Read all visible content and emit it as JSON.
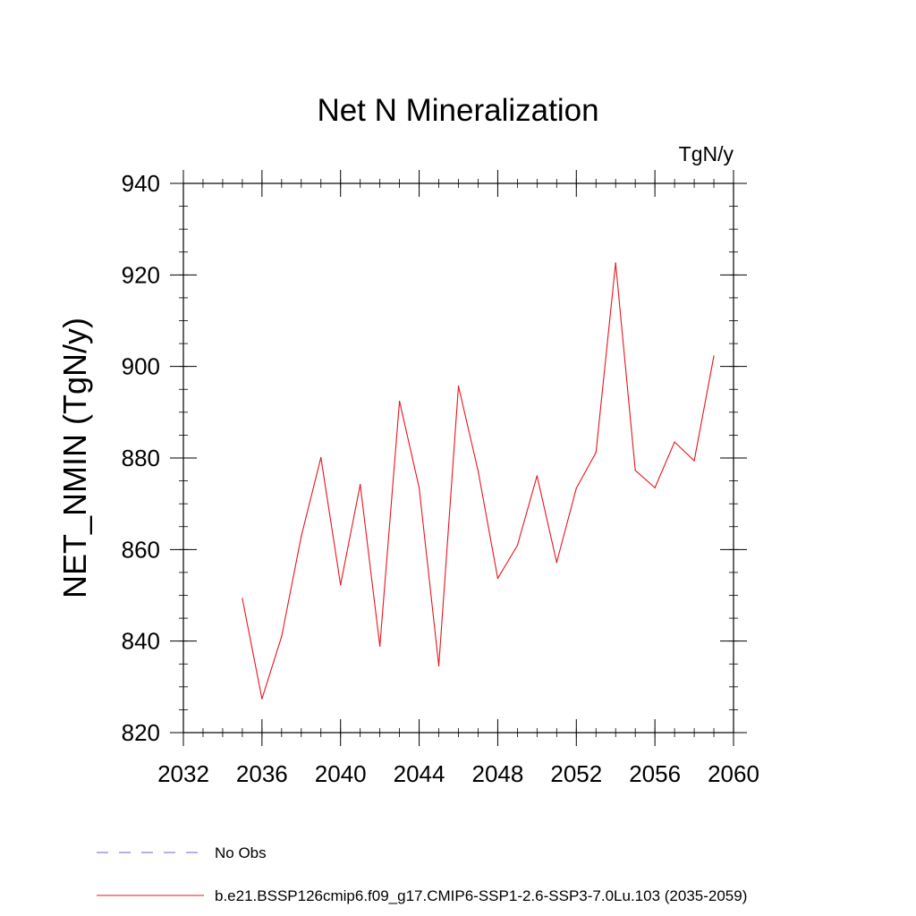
{
  "chart_data": {
    "type": "line",
    "title": "Net N Mineralization",
    "units": "TgN/y",
    "xlabel": "",
    "ylabel": "NET_NMIN  (TgN/y)",
    "xlim": [
      2032,
      2060
    ],
    "ylim": [
      820,
      940
    ],
    "xticks": [
      2032,
      2036,
      2040,
      2044,
      2048,
      2052,
      2056,
      2060
    ],
    "yticks": [
      820,
      840,
      860,
      880,
      900,
      920,
      940
    ],
    "x_minor_step": 1,
    "y_minor_step": 5,
    "grid": false,
    "series": [
      {
        "name": "b.e21.BSSP126cmip6.f09_g17.CMIP6-SSP1-2.6-SSP3-7.0Lu.103 (2035-2059)",
        "color": "#e8141b",
        "x": [
          2035,
          2036,
          2037,
          2038,
          2039,
          2040,
          2041,
          2042,
          2043,
          2044,
          2045,
          2046,
          2047,
          2048,
          2049,
          2050,
          2051,
          2052,
          2053,
          2054,
          2055,
          2056,
          2057,
          2058,
          2059
        ],
        "values": [
          849.3,
          827.4,
          841.0,
          862.9,
          880.1,
          852.3,
          874.2,
          838.9,
          892.4,
          873.5,
          834.6,
          895.7,
          877.2,
          853.7,
          860.9,
          876.1,
          857.2,
          873.4,
          881.2,
          922.6,
          877.3,
          873.5,
          883.5,
          879.4,
          902.3
        ]
      }
    ],
    "legend": [
      {
        "label": "No Obs",
        "style": "dashed",
        "color": "#6666cc"
      },
      {
        "label": "b.e21.BSSP126cmip6.f09_g17.CMIP6-SSP1-2.6-SSP3-7.0Lu.103 (2035-2059)",
        "style": "solid",
        "color": "#e8141b"
      }
    ],
    "legend_position": "bottom"
  }
}
